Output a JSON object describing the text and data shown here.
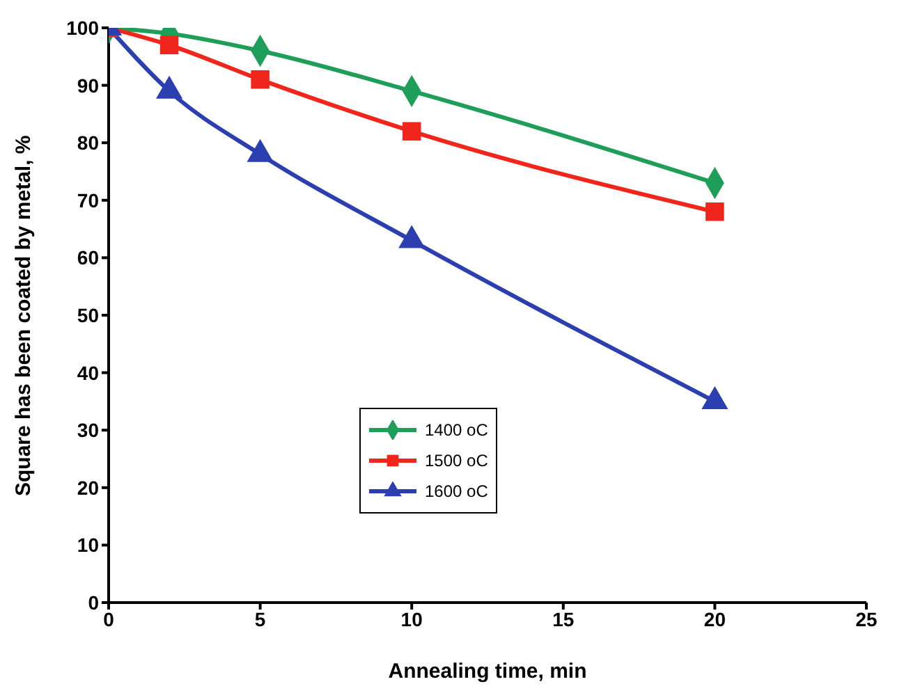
{
  "chart_data": {
    "type": "line",
    "xlabel": "Annealing time, min",
    "ylabel": "Square has been coated by metal, %",
    "x": [
      0,
      2,
      5,
      10,
      20
    ],
    "series": [
      {
        "name": "1400 oC",
        "color": "#1f9e5a",
        "marker": "diamond",
        "values": [
          100,
          99,
          96,
          89,
          73
        ]
      },
      {
        "name": "1500 oC",
        "color": "#f0251b",
        "marker": "square",
        "values": [
          100,
          97,
          91,
          82,
          68
        ]
      },
      {
        "name": "1600 oC",
        "color": "#2b3fb0",
        "marker": "triangle",
        "values": [
          100,
          89,
          78,
          63,
          35
        ]
      }
    ],
    "xlim": [
      0,
      25
    ],
    "xticks": [
      0,
      5,
      10,
      15,
      20,
      25
    ],
    "ylim": [
      0,
      100
    ],
    "yticks": [
      0,
      10,
      20,
      30,
      40,
      50,
      60,
      70,
      80,
      90,
      100
    ],
    "grid": false,
    "legend": "left"
  }
}
